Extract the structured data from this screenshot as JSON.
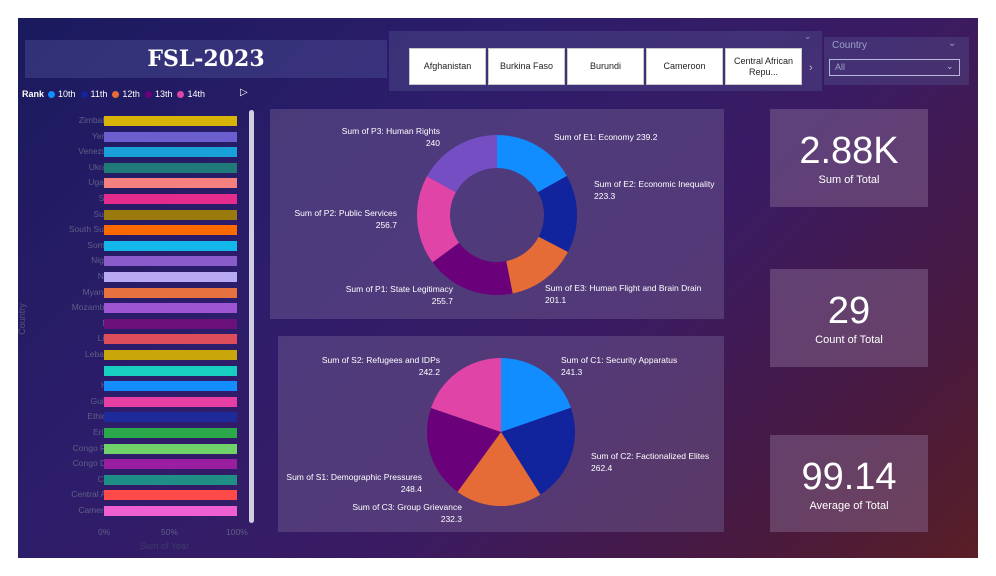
{
  "title": "FSL-2023",
  "country_chips": [
    "Afghanistan",
    "Burkina Faso",
    "Burundi",
    "Cameroon",
    "Central African Repu..."
  ],
  "country_slicer": {
    "label": "Country",
    "selected": "All"
  },
  "legend": {
    "title": "Rank",
    "items": [
      {
        "label": "10th",
        "color": "#118dff"
      },
      {
        "label": "11th",
        "color": "#12239e"
      },
      {
        "label": "12th",
        "color": "#e66c37"
      },
      {
        "label": "13th",
        "color": "#6b007b"
      },
      {
        "label": "14th",
        "color": "#e044a7"
      }
    ]
  },
  "bar_chart": {
    "y_axis_title": "Country",
    "x_axis_title": "Sum of Year",
    "x_ticks": [
      "0%",
      "50%",
      "100%"
    ],
    "countries": [
      "Zimbabwe",
      "Yemen",
      "Venezuela",
      "Ukraine",
      "Uganda",
      "Syria",
      "Sudan",
      "South Sudan",
      "Somalia",
      "Nigeria",
      "Niger",
      "Myanmar",
      "Mozambiq...",
      "Mali",
      "Libya",
      "Lebanon",
      "Iraq",
      "Haiti",
      "Guinea",
      "Ethiopia",
      "Eritrea",
      "Congo Re...",
      "Congo De...",
      "Chad",
      "Central Afr...",
      "Cameroon"
    ],
    "values": [
      100,
      100,
      100,
      100,
      100,
      100,
      100,
      100,
      100,
      100,
      100,
      100,
      100,
      100,
      100,
      100,
      100,
      100,
      100,
      100,
      100,
      100,
      100,
      100,
      100,
      100
    ],
    "colors": [
      "#d8b409",
      "#6b5fd0",
      "#1aa0d8",
      "#1f7a78",
      "#f58080",
      "#e52b8c",
      "#9a7a0d",
      "#ff6a00",
      "#14b7ea",
      "#8a5cc9",
      "#b9a8f2",
      "#e8723f",
      "#9e55d1",
      "#6b0f7a",
      "#dd4d5a",
      "#c9a70a",
      "#18cec0",
      "#138dff",
      "#e63fa4",
      "#1f2a9a",
      "#2aa84a",
      "#6fd36a",
      "#9a1fa0",
      "#1f8e84",
      "#ff4a4a",
      "#ee5fd2"
    ]
  },
  "donut": {
    "labels": [
      "Sum of E1: Economy",
      "Sum of E2: Economic Inequality",
      "Sum of E3: Human Flight and Brain Drain",
      "Sum of P1: State Legitimacy",
      "Sum of P2: Public Services",
      "Sum of P3: Human Rights"
    ],
    "values": [
      "239.2",
      "223.3",
      "201.1",
      "255.7",
      "256.7",
      "240"
    ],
    "colors": [
      "#118dff",
      "#12239e",
      "#e66c37",
      "#6b007b",
      "#e044a7",
      "#744ec2"
    ]
  },
  "pie": {
    "labels": [
      "Sum of C1: Security Apparatus",
      "Sum of C2: Factionalized Elites",
      "Sum of C3: Group Grievance",
      "Sum of S1: Demographic Pressures",
      "Sum of S2: Refugees and IDPs"
    ],
    "values": [
      "241.3",
      "262.4",
      "232.3",
      "248.4",
      "242.2"
    ],
    "colors": [
      "#118dff",
      "#12239e",
      "#e66c37",
      "#6b007b",
      "#e044a7"
    ]
  },
  "kpis": [
    {
      "value": "2.88K",
      "label": "Sum of Total"
    },
    {
      "value": "29",
      "label": "Count of Total"
    },
    {
      "value": "99.14",
      "label": "Average of Total"
    }
  ]
}
